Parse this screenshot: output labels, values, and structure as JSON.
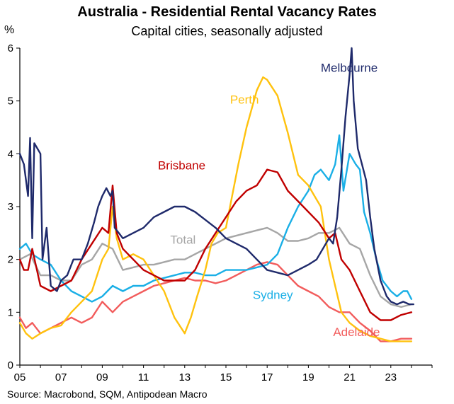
{
  "header": {
    "title": "Australia - Residential Rental Vacancy Rates",
    "subtitle": "Capital cities, seasonally adjusted",
    "unit": "%"
  },
  "footer": {
    "source": "Source: Macrobond, SQM, Antipodean Macro"
  },
  "chart_data": {
    "type": "line",
    "title": "Australia - Residential Rental Vacancy Rates",
    "subtitle": "Capital cities, seasonally adjusted",
    "ylabel": "%",
    "xlim": [
      2005,
      2025
    ],
    "ylim": [
      0,
      6
    ],
    "x_ticks": [
      "05",
      "07",
      "09",
      "11",
      "13",
      "15",
      "17",
      "19",
      "21",
      "23"
    ],
    "y_ticks": [
      "0",
      "1",
      "2",
      "3",
      "4",
      "5",
      "6"
    ],
    "grid": false,
    "legend": "inline labels",
    "series": [
      {
        "name": "Melbourne",
        "color": "#1F2A6B",
        "points": [
          [
            2005.0,
            4.0
          ],
          [
            2005.2,
            3.8
          ],
          [
            2005.4,
            3.2
          ],
          [
            2005.5,
            4.3
          ],
          [
            2005.6,
            2.4
          ],
          [
            2005.7,
            4.2
          ],
          [
            2006.0,
            4.0
          ],
          [
            2006.1,
            2.0
          ],
          [
            2006.3,
            2.6
          ],
          [
            2006.5,
            1.5
          ],
          [
            2006.8,
            1.4
          ],
          [
            2007.0,
            1.6
          ],
          [
            2007.3,
            1.7
          ],
          [
            2007.6,
            2.0
          ],
          [
            2008.0,
            2.0
          ],
          [
            2008.3,
            2.3
          ],
          [
            2008.6,
            2.7
          ],
          [
            2008.8,
            3.0
          ],
          [
            2009.0,
            3.2
          ],
          [
            2009.2,
            3.35
          ],
          [
            2009.4,
            3.2
          ],
          [
            2009.5,
            3.3
          ],
          [
            2009.6,
            2.6
          ],
          [
            2009.8,
            2.5
          ],
          [
            2010.0,
            2.4
          ],
          [
            2010.5,
            2.5
          ],
          [
            2011.0,
            2.6
          ],
          [
            2011.5,
            2.8
          ],
          [
            2012.0,
            2.9
          ],
          [
            2012.5,
            3.0
          ],
          [
            2013.0,
            3.0
          ],
          [
            2013.5,
            2.9
          ],
          [
            2014.0,
            2.75
          ],
          [
            2014.5,
            2.6
          ],
          [
            2015.0,
            2.4
          ],
          [
            2015.5,
            2.3
          ],
          [
            2016.0,
            2.2
          ],
          [
            2016.5,
            2.0
          ],
          [
            2017.0,
            1.8
          ],
          [
            2017.5,
            1.75
          ],
          [
            2018.0,
            1.7
          ],
          [
            2018.5,
            1.8
          ],
          [
            2019.0,
            1.9
          ],
          [
            2019.4,
            2.0
          ],
          [
            2019.7,
            2.2
          ],
          [
            2020.0,
            2.4
          ],
          [
            2020.2,
            2.3
          ],
          [
            2020.4,
            2.8
          ],
          [
            2020.6,
            3.7
          ],
          [
            2020.8,
            4.7
          ],
          [
            2021.0,
            5.5
          ],
          [
            2021.1,
            6.0
          ],
          [
            2021.2,
            5.0
          ],
          [
            2021.4,
            4.1
          ],
          [
            2021.6,
            3.8
          ],
          [
            2021.8,
            3.5
          ],
          [
            2022.0,
            2.8
          ],
          [
            2022.2,
            2.2
          ],
          [
            2022.5,
            1.6
          ],
          [
            2022.8,
            1.3
          ],
          [
            2023.0,
            1.2
          ],
          [
            2023.3,
            1.15
          ],
          [
            2023.6,
            1.2
          ],
          [
            2023.9,
            1.15
          ],
          [
            2024.1,
            1.15
          ]
        ]
      },
      {
        "name": "Sydney",
        "color": "#1AAFE6",
        "points": [
          [
            2005.0,
            2.2
          ],
          [
            2005.3,
            2.3
          ],
          [
            2005.6,
            2.1
          ],
          [
            2006.0,
            2.0
          ],
          [
            2006.5,
            1.9
          ],
          [
            2007.0,
            1.6
          ],
          [
            2007.5,
            1.4
          ],
          [
            2008.0,
            1.3
          ],
          [
            2008.5,
            1.2
          ],
          [
            2009.0,
            1.3
          ],
          [
            2009.5,
            1.5
          ],
          [
            2010.0,
            1.4
          ],
          [
            2010.5,
            1.5
          ],
          [
            2011.0,
            1.5
          ],
          [
            2011.5,
            1.6
          ],
          [
            2012.0,
            1.65
          ],
          [
            2012.5,
            1.7
          ],
          [
            2013.0,
            1.75
          ],
          [
            2013.5,
            1.75
          ],
          [
            2014.0,
            1.7
          ],
          [
            2014.5,
            1.7
          ],
          [
            2015.0,
            1.8
          ],
          [
            2015.5,
            1.8
          ],
          [
            2016.0,
            1.8
          ],
          [
            2016.5,
            1.85
          ],
          [
            2017.0,
            1.9
          ],
          [
            2017.5,
            2.1
          ],
          [
            2018.0,
            2.6
          ],
          [
            2018.5,
            3.0
          ],
          [
            2019.0,
            3.3
          ],
          [
            2019.3,
            3.6
          ],
          [
            2019.6,
            3.7
          ],
          [
            2020.0,
            3.5
          ],
          [
            2020.3,
            3.8
          ],
          [
            2020.5,
            4.35
          ],
          [
            2020.7,
            3.3
          ],
          [
            2021.0,
            4.0
          ],
          [
            2021.3,
            3.8
          ],
          [
            2021.5,
            3.7
          ],
          [
            2021.7,
            2.9
          ],
          [
            2022.0,
            2.5
          ],
          [
            2022.3,
            2.0
          ],
          [
            2022.6,
            1.6
          ],
          [
            2023.0,
            1.4
          ],
          [
            2023.3,
            1.3
          ],
          [
            2023.6,
            1.4
          ],
          [
            2023.8,
            1.4
          ],
          [
            2024.0,
            1.25
          ]
        ]
      },
      {
        "name": "Perth",
        "color": "#FFC20E",
        "points": [
          [
            2005.0,
            0.8
          ],
          [
            2005.3,
            0.6
          ],
          [
            2005.6,
            0.5
          ],
          [
            2006.0,
            0.6
          ],
          [
            2006.5,
            0.7
          ],
          [
            2007.0,
            0.75
          ],
          [
            2007.5,
            1.0
          ],
          [
            2008.0,
            1.2
          ],
          [
            2008.5,
            1.4
          ],
          [
            2009.0,
            2.0
          ],
          [
            2009.3,
            2.2
          ],
          [
            2009.5,
            3.0
          ],
          [
            2009.7,
            2.4
          ],
          [
            2010.0,
            2.0
          ],
          [
            2010.5,
            2.1
          ],
          [
            2011.0,
            2.0
          ],
          [
            2011.5,
            1.7
          ],
          [
            2012.0,
            1.4
          ],
          [
            2012.5,
            0.9
          ],
          [
            2013.0,
            0.6
          ],
          [
            2013.3,
            0.9
          ],
          [
            2013.6,
            1.3
          ],
          [
            2014.0,
            1.8
          ],
          [
            2014.3,
            2.3
          ],
          [
            2014.6,
            2.5
          ],
          [
            2015.0,
            2.6
          ],
          [
            2015.3,
            3.2
          ],
          [
            2015.6,
            3.8
          ],
          [
            2016.0,
            4.5
          ],
          [
            2016.5,
            5.2
          ],
          [
            2016.8,
            5.45
          ],
          [
            2017.0,
            5.4
          ],
          [
            2017.5,
            5.1
          ],
          [
            2018.0,
            4.4
          ],
          [
            2018.5,
            3.6
          ],
          [
            2019.0,
            3.4
          ],
          [
            2019.3,
            3.2
          ],
          [
            2019.6,
            3.0
          ],
          [
            2020.0,
            2.0
          ],
          [
            2020.3,
            1.5
          ],
          [
            2020.6,
            1.0
          ],
          [
            2021.0,
            0.8
          ],
          [
            2021.5,
            0.65
          ],
          [
            2022.0,
            0.55
          ],
          [
            2022.5,
            0.5
          ],
          [
            2023.0,
            0.45
          ],
          [
            2023.5,
            0.45
          ],
          [
            2024.0,
            0.45
          ]
        ]
      },
      {
        "name": "Brisbane",
        "color": "#C00000",
        "points": [
          [
            2005.0,
            2.0
          ],
          [
            2005.2,
            1.8
          ],
          [
            2005.4,
            1.8
          ],
          [
            2005.6,
            2.2
          ],
          [
            2006.0,
            1.5
          ],
          [
            2006.5,
            1.4
          ],
          [
            2007.0,
            1.5
          ],
          [
            2007.5,
            1.6
          ],
          [
            2008.0,
            2.0
          ],
          [
            2008.5,
            2.3
          ],
          [
            2009.0,
            2.6
          ],
          [
            2009.3,
            2.5
          ],
          [
            2009.5,
            3.4
          ],
          [
            2009.7,
            2.5
          ],
          [
            2010.0,
            2.2
          ],
          [
            2010.5,
            2.0
          ],
          [
            2011.0,
            1.8
          ],
          [
            2011.5,
            1.7
          ],
          [
            2012.0,
            1.6
          ],
          [
            2012.5,
            1.6
          ],
          [
            2013.0,
            1.6
          ],
          [
            2013.5,
            1.8
          ],
          [
            2014.0,
            2.2
          ],
          [
            2014.5,
            2.5
          ],
          [
            2015.0,
            2.8
          ],
          [
            2015.5,
            3.1
          ],
          [
            2016.0,
            3.3
          ],
          [
            2016.5,
            3.4
          ],
          [
            2017.0,
            3.7
          ],
          [
            2017.5,
            3.65
          ],
          [
            2018.0,
            3.3
          ],
          [
            2018.5,
            3.1
          ],
          [
            2019.0,
            2.9
          ],
          [
            2019.5,
            2.7
          ],
          [
            2020.0,
            2.4
          ],
          [
            2020.3,
            2.5
          ],
          [
            2020.6,
            2.0
          ],
          [
            2021.0,
            1.8
          ],
          [
            2021.5,
            1.4
          ],
          [
            2022.0,
            1.0
          ],
          [
            2022.5,
            0.85
          ],
          [
            2023.0,
            0.85
          ],
          [
            2023.5,
            0.95
          ],
          [
            2024.0,
            1.0
          ]
        ]
      },
      {
        "name": "Total",
        "color": "#A6A6A6",
        "points": [
          [
            2005.0,
            2.0
          ],
          [
            2005.5,
            2.1
          ],
          [
            2006.0,
            1.7
          ],
          [
            2006.5,
            1.7
          ],
          [
            2007.0,
            1.6
          ],
          [
            2007.5,
            1.6
          ],
          [
            2008.0,
            1.9
          ],
          [
            2008.5,
            2.0
          ],
          [
            2009.0,
            2.3
          ],
          [
            2009.5,
            2.2
          ],
          [
            2010.0,
            1.8
          ],
          [
            2010.5,
            1.85
          ],
          [
            2011.0,
            1.9
          ],
          [
            2011.5,
            1.9
          ],
          [
            2012.0,
            1.95
          ],
          [
            2012.5,
            2.0
          ],
          [
            2013.0,
            2.0
          ],
          [
            2013.5,
            2.1
          ],
          [
            2014.0,
            2.2
          ],
          [
            2014.5,
            2.3
          ],
          [
            2015.0,
            2.4
          ],
          [
            2015.5,
            2.45
          ],
          [
            2016.0,
            2.5
          ],
          [
            2016.5,
            2.55
          ],
          [
            2017.0,
            2.6
          ],
          [
            2017.5,
            2.5
          ],
          [
            2018.0,
            2.35
          ],
          [
            2018.5,
            2.35
          ],
          [
            2019.0,
            2.4
          ],
          [
            2019.5,
            2.5
          ],
          [
            2020.0,
            2.5
          ],
          [
            2020.5,
            2.6
          ],
          [
            2021.0,
            2.3
          ],
          [
            2021.5,
            2.2
          ],
          [
            2022.0,
            1.7
          ],
          [
            2022.5,
            1.3
          ],
          [
            2023.0,
            1.15
          ],
          [
            2023.5,
            1.1
          ],
          [
            2024.0,
            1.15
          ]
        ]
      },
      {
        "name": "Adelaide",
        "color": "#F25C5C",
        "points": [
          [
            2005.0,
            0.9
          ],
          [
            2005.3,
            0.7
          ],
          [
            2005.6,
            0.8
          ],
          [
            2006.0,
            0.6
          ],
          [
            2006.5,
            0.7
          ],
          [
            2007.0,
            0.8
          ],
          [
            2007.5,
            0.9
          ],
          [
            2008.0,
            0.8
          ],
          [
            2008.5,
            0.9
          ],
          [
            2009.0,
            1.2
          ],
          [
            2009.5,
            1.0
          ],
          [
            2010.0,
            1.2
          ],
          [
            2010.5,
            1.3
          ],
          [
            2011.0,
            1.4
          ],
          [
            2011.5,
            1.5
          ],
          [
            2012.0,
            1.55
          ],
          [
            2012.5,
            1.6
          ],
          [
            2013.0,
            1.65
          ],
          [
            2013.5,
            1.6
          ],
          [
            2014.0,
            1.6
          ],
          [
            2014.5,
            1.55
          ],
          [
            2015.0,
            1.6
          ],
          [
            2015.5,
            1.7
          ],
          [
            2016.0,
            1.8
          ],
          [
            2016.5,
            1.9
          ],
          [
            2017.0,
            1.95
          ],
          [
            2017.5,
            1.9
          ],
          [
            2018.0,
            1.7
          ],
          [
            2018.5,
            1.5
          ],
          [
            2019.0,
            1.4
          ],
          [
            2019.5,
            1.3
          ],
          [
            2020.0,
            1.1
          ],
          [
            2020.5,
            1.0
          ],
          [
            2021.0,
            1.0
          ],
          [
            2021.5,
            0.8
          ],
          [
            2022.0,
            0.65
          ],
          [
            2022.5,
            0.45
          ],
          [
            2023.0,
            0.45
          ],
          [
            2023.5,
            0.5
          ],
          [
            2024.0,
            0.5
          ]
        ]
      }
    ],
    "annotations": [
      {
        "text": "Melbourne",
        "color": "#1F2A6B",
        "x": 2019.6,
        "y": 5.55
      },
      {
        "text": "Perth",
        "color": "#FFC20E",
        "x": 2015.2,
        "y": 4.95
      },
      {
        "text": "Brisbane",
        "color": "#C00000",
        "x": 2011.7,
        "y": 3.7
      },
      {
        "text": "Total",
        "color": "#A6A6A6",
        "x": 2012.3,
        "y": 2.3
      },
      {
        "text": "Sydney",
        "color": "#1AAFE6",
        "x": 2016.3,
        "y": 1.25
      },
      {
        "text": "Adelaide",
        "color": "#F25C5C",
        "x": 2020.2,
        "y": 0.55
      }
    ]
  }
}
